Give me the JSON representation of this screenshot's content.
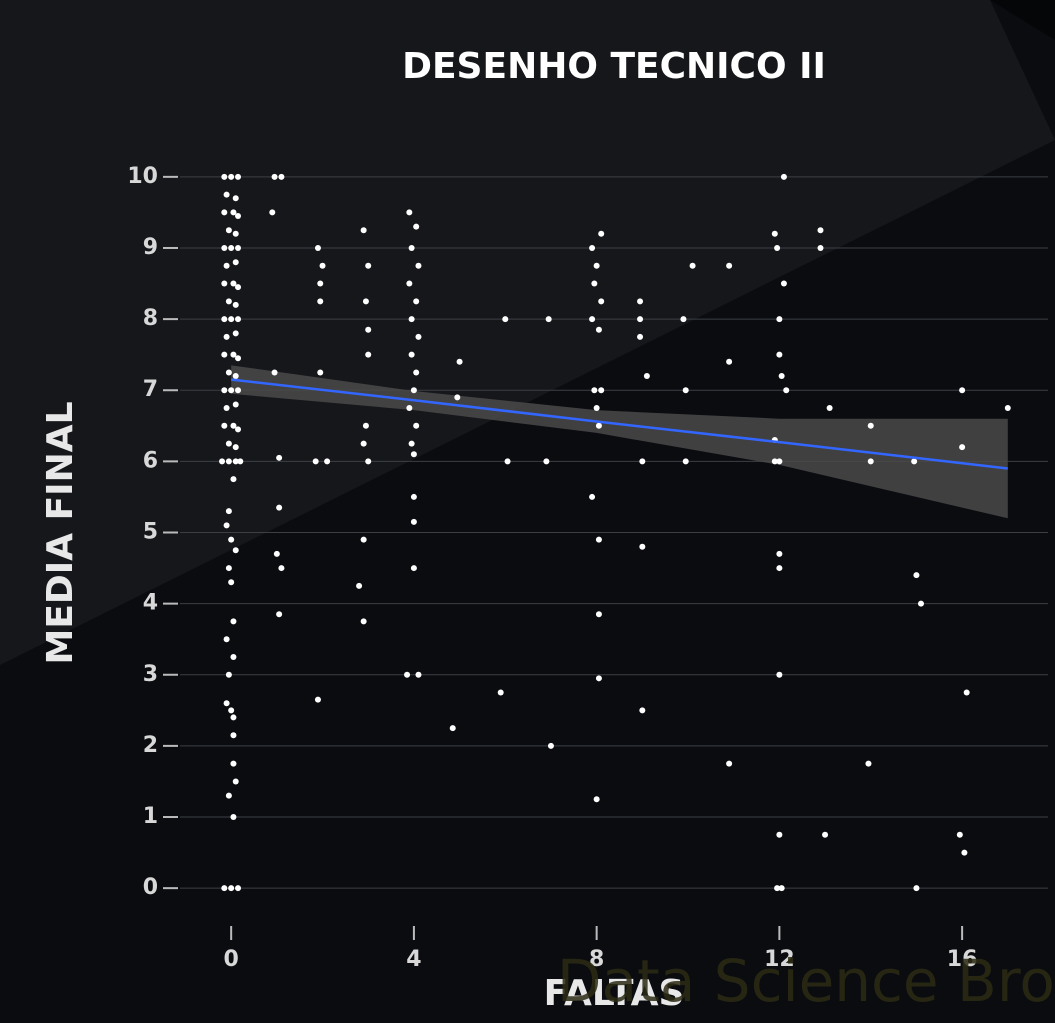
{
  "chart_data": {
    "type": "scatter",
    "title": "DESENHO TECNICO II",
    "x_label": "FALTAS",
    "y_label": "MEDIA FINAL",
    "watermark": "Data Science Broon",
    "color": "#ffffff",
    "x": [
      -0.15,
      0.0,
      0.15,
      -0.1,
      0.1,
      -0.15,
      0.05,
      0.15,
      -0.05,
      0.1,
      -0.15,
      0.0,
      0.15,
      -0.1,
      0.1,
      -0.15,
      0.05,
      0.15,
      -0.05,
      0.1,
      -0.15,
      0.0,
      0.15,
      -0.1,
      0.1,
      -0.15,
      0.05,
      0.15,
      -0.05,
      0.1,
      -0.15,
      0.0,
      0.15,
      -0.1,
      0.1,
      -0.15,
      0.05,
      0.15,
      -0.05,
      0.1,
      -0.2,
      -0.05,
      0.1,
      0.2,
      0.05,
      -0.05,
      -0.1,
      0.0,
      0.1,
      -0.05,
      0.0,
      0.05,
      -0.1,
      0.05,
      -0.05,
      -0.1,
      0.0,
      0.05,
      0.05,
      0.05,
      0.1,
      -0.05,
      0.05,
      -0.15,
      0.0,
      0.15,
      0.95,
      1.1,
      0.9,
      0.95,
      1.05,
      1.05,
      1.0,
      1.1,
      1.05,
      1.9,
      2.0,
      1.95,
      1.95,
      1.85,
      2.1,
      1.95,
      1.9,
      2.9,
      3.0,
      2.95,
      3.0,
      3.0,
      2.95,
      2.9,
      3.0,
      2.9,
      2.8,
      2.9,
      3.9,
      4.05,
      3.95,
      4.1,
      3.9,
      4.05,
      3.95,
      4.1,
      3.95,
      4.05,
      4.0,
      3.9,
      4.05,
      3.95,
      4.0,
      4.0,
      4.0,
      4.0,
      3.85,
      4.1,
      4.95,
      5.0,
      4.85,
      6.0,
      6.05,
      5.9,
      6.95,
      6.9,
      7.0,
      7.9,
      8.1,
      8.0,
      7.95,
      8.1,
      7.9,
      8.05,
      7.95,
      8.1,
      8.0,
      8.05,
      7.9,
      8.05,
      8.05,
      8.05,
      8.0,
      8.95,
      8.95,
      8.95,
      9.1,
      9.0,
      9.0,
      9.0,
      9.9,
      10.1,
      9.95,
      9.95,
      10.9,
      10.9,
      10.9,
      11.9,
      12.1,
      11.95,
      12.1,
      12.0,
      12.0,
      12.05,
      12.15,
      11.9,
      12.0,
      11.9,
      12.0,
      12.0,
      12.0,
      12.0,
      11.95,
      12.05,
      12.9,
      12.9,
      13.1,
      13.0,
      14.0,
      14.0,
      13.95,
      14.95,
      15.0,
      15.1,
      15.0,
      16.0,
      16.0,
      16.1,
      15.95,
      16.05,
      17.0
    ],
    "values": [
      10,
      10,
      10,
      9.75,
      9.7,
      9.5,
      9.5,
      9.45,
      9.25,
      9.2,
      9.0,
      9.0,
      9.0,
      8.75,
      8.8,
      8.5,
      8.5,
      8.45,
      8.25,
      8.2,
      8.0,
      8.0,
      8.0,
      7.75,
      7.8,
      7.5,
      7.5,
      7.45,
      7.25,
      7.2,
      7.0,
      7.0,
      7.0,
      6.75,
      6.8,
      6.5,
      6.5,
      6.45,
      6.25,
      6.2,
      6.0,
      6.0,
      6.0,
      6.0,
      5.75,
      5.3,
      5.1,
      4.9,
      4.75,
      4.5,
      4.3,
      3.75,
      3.5,
      3.25,
      3.0,
      2.6,
      2.5,
      2.4,
      2.15,
      1.75,
      1.5,
      1.3,
      1.0,
      0,
      0,
      0,
      10,
      10,
      9.5,
      7.25,
      6.05,
      5.35,
      4.7,
      4.5,
      3.85,
      9.0,
      8.75,
      8.5,
      8.25,
      6.0,
      6.0,
      7.25,
      2.65,
      9.25,
      8.75,
      8.25,
      7.85,
      7.5,
      6.5,
      6.25,
      6.0,
      4.9,
      4.25,
      3.75,
      9.5,
      9.3,
      9.0,
      8.75,
      8.5,
      8.25,
      8.0,
      7.75,
      7.5,
      7.25,
      7.0,
      6.75,
      6.5,
      6.25,
      6.1,
      5.5,
      5.15,
      4.5,
      3.0,
      3.0,
      6.9,
      7.4,
      2.25,
      8.0,
      6.0,
      2.75,
      8.0,
      6.0,
      2.0,
      9.0,
      9.2,
      8.75,
      8.5,
      8.25,
      8.0,
      7.85,
      7.0,
      7.0,
      6.75,
      6.5,
      5.5,
      4.9,
      3.85,
      2.95,
      1.25,
      8.25,
      8.0,
      7.75,
      7.2,
      6.0,
      4.8,
      2.5,
      8.0,
      8.75,
      7.0,
      6.0,
      8.75,
      7.4,
      1.75,
      9.2,
      10.0,
      9.0,
      8.5,
      8.0,
      7.5,
      7.2,
      7.0,
      6.3,
      6.0,
      6.0,
      4.7,
      4.5,
      3.0,
      0.75,
      0,
      0,
      9.25,
      9.0,
      6.75,
      0.75,
      6.5,
      6.0,
      1.75,
      6.0,
      4.4,
      4.0,
      0,
      7.0,
      6.2,
      2.75,
      0.75,
      0.5,
      6.75
    ],
    "trend": {
      "color": "#3366ff",
      "band_color": "#4a4a4a",
      "x": [
        0,
        4,
        8,
        12,
        17
      ],
      "y": [
        7.15,
        6.86,
        6.56,
        6.27,
        5.9
      ],
      "lower": [
        6.95,
        6.72,
        6.4,
        5.95,
        5.2
      ],
      "upper": [
        7.35,
        6.99,
        6.72,
        6.6,
        6.6
      ]
    },
    "xlim": [
      -1.12,
      17.88
    ],
    "xticks": [
      0,
      4,
      8,
      12,
      16
    ],
    "ylim": [
      -0.49,
      10.49
    ],
    "yticks": [
      0,
      1,
      2,
      3,
      4,
      5,
      6,
      7,
      8,
      9,
      10
    ],
    "grid": true
  }
}
